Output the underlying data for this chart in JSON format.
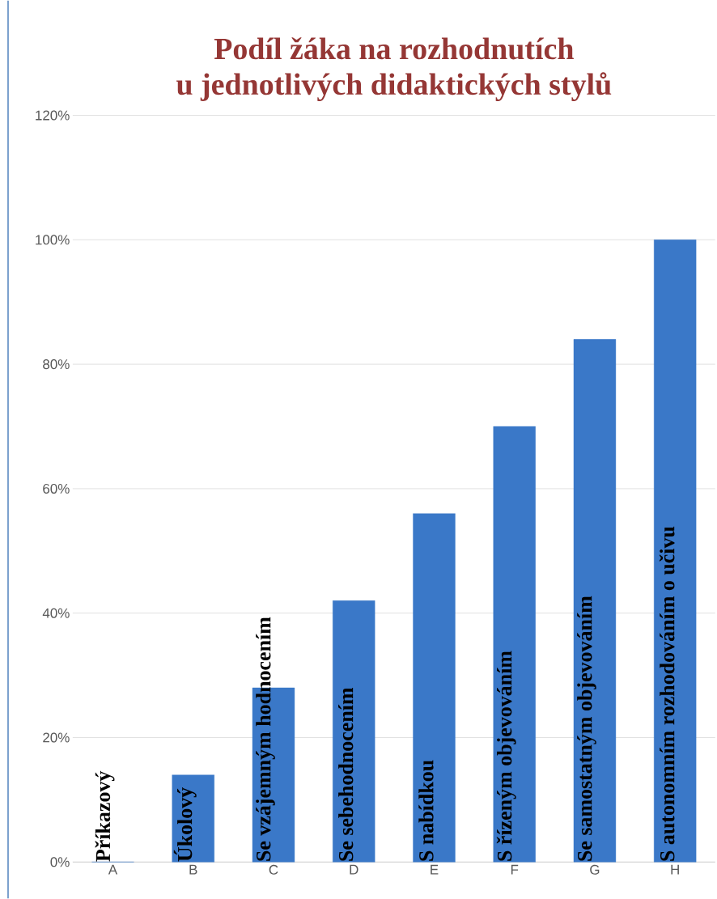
{
  "chart_data": {
    "type": "bar",
    "title": "Podíl žáka na rozhodnutích\nu jednotlivých didaktických stylů",
    "categories": [
      "A",
      "B",
      "C",
      "D",
      "E",
      "F",
      "G",
      "H"
    ],
    "values": [
      0,
      14,
      28,
      42,
      56,
      70,
      84,
      100
    ],
    "color": "#3a78c8",
    "ylim": [
      0,
      120
    ],
    "yticks": [
      {
        "value": 0,
        "label": "0%"
      },
      {
        "value": 20,
        "label": "20%"
      },
      {
        "value": 40,
        "label": "40%"
      },
      {
        "value": 60,
        "label": "60%"
      },
      {
        "value": 80,
        "label": "80%"
      },
      {
        "value": 100,
        "label": "100%"
      },
      {
        "value": 120,
        "label": "120%"
      }
    ],
    "grid": "y",
    "annotations": [
      {
        "text": "Příkazový",
        "x": "A",
        "y": 0
      },
      {
        "text": "Úkolový",
        "x": "B",
        "y": 0
      },
      {
        "text": "Se vzájemným hodnocením",
        "x": "C",
        "y": 0
      },
      {
        "text": "Se sebehodnocením",
        "x": "D",
        "y": 0
      },
      {
        "text": "S nabídkou",
        "x": "E",
        "y": 0
      },
      {
        "text": "S řízeným objevováním",
        "x": "F",
        "y": 0
      },
      {
        "text": "Se samostatným objevováním",
        "x": "G",
        "y": 0
      },
      {
        "text": "S autonomním rozhodováním o učivu",
        "x": "H",
        "y": 0
      }
    ]
  }
}
